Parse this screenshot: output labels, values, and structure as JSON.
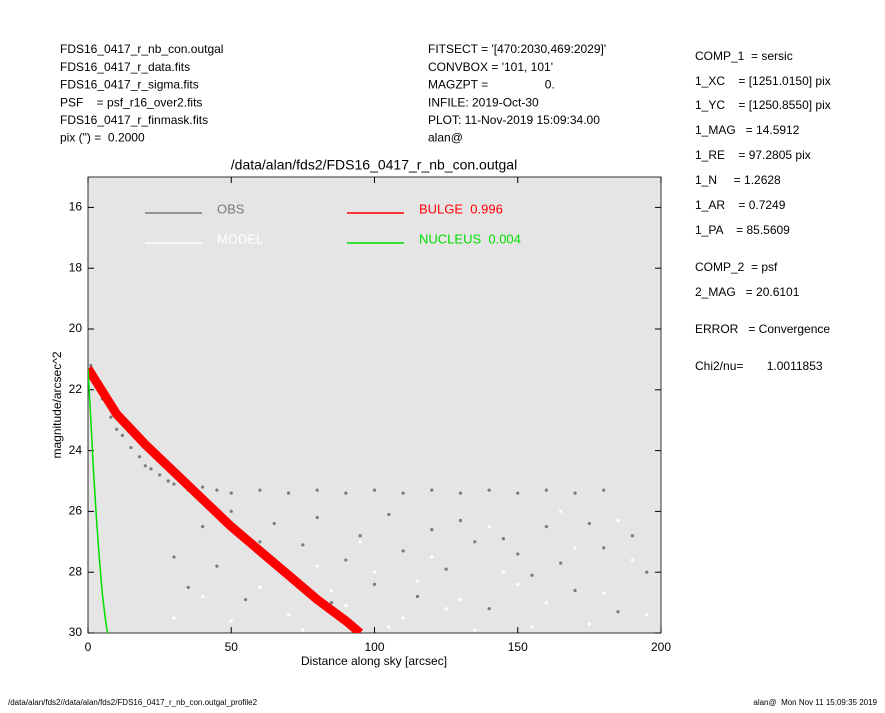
{
  "header_left": [
    "FDS16_0417_r_nb_con.outgal",
    "FDS16_0417_r_data.fits",
    "FDS16_0417_r_sigma.fits",
    "PSF    = psf_r16_over2.fits",
    "FDS16_0417_r_finmask.fits",
    "pix (\") =  0.2000"
  ],
  "header_middle": [
    "FITSECT = '[470:2030,469:2029]'",
    "CONVBOX = '101, 101'",
    "MAGZPT =                 0.",
    "INFILE: 2019-Oct-30",
    "PLOT: 11-Nov-2019 15:09:34.00",
    "alan@"
  ],
  "fit_parameters": [
    "COMP_1  = sersic",
    "1_XC    = [1251.0150] pix",
    "1_YC    = [1250.8550] pix",
    "1_MAG   = 14.5912",
    "1_RE    = 97.2805 pix",
    "1_N     = 1.2628",
    "1_AR    = 0.7249",
    "1_PA    = 85.5609",
    "COMP_2  = psf",
    "2_MAG   = 20.6101",
    "ERROR   = Convergence",
    "Chi2/nu=       1.0011853"
  ],
  "footer_left": "/data/alan/fds2//data/alan/fds2/FDS16_0417_r_nb_con.outgal_profile2",
  "footer_right": "alan@  Mon Nov 11 15:09:35 2019",
  "chart_data": {
    "type": "scatter",
    "title": "/data/alan/fds2/FDS16_0417_r_nb_con.outgal",
    "x_label": "Distance along sky [arcsec]",
    "y_label": "magnitude/arcsec^2",
    "xlim": [
      0,
      200
    ],
    "ylim": [
      30,
      15
    ],
    "xticks": [
      0,
      50,
      100,
      150,
      200
    ],
    "yticks": [
      16,
      18,
      20,
      22,
      24,
      26,
      28,
      30
    ],
    "legend": "upper left",
    "background": "#e5e5e5",
    "series": [
      {
        "name": "OBS",
        "color": "#7a7a7a",
        "mode": "markers",
        "x": [
          1,
          3,
          5,
          8,
          10,
          12,
          15,
          18,
          20,
          22,
          25,
          28,
          30,
          35,
          40,
          45,
          50,
          60,
          70,
          80,
          90,
          100,
          110,
          120,
          130,
          140,
          150,
          160,
          170,
          180,
          30,
          35,
          40,
          45,
          50,
          55,
          60,
          65,
          70,
          75,
          80,
          85,
          90,
          95,
          100,
          105,
          110,
          115,
          120,
          125,
          130,
          135,
          140,
          145,
          150,
          155,
          160,
          165,
          170,
          175,
          180,
          185,
          190,
          195
        ],
        "values": [
          21.2,
          21.8,
          22.3,
          22.9,
          23.3,
          23.5,
          23.9,
          24.2,
          24.5,
          24.6,
          24.8,
          25.0,
          25.1,
          25.3,
          25.2,
          25.3,
          25.4,
          25.3,
          25.4,
          25.3,
          25.4,
          25.3,
          25.4,
          25.3,
          25.4,
          25.3,
          25.4,
          25.3,
          25.4,
          25.3,
          27.5,
          28.5,
          26.5,
          27.8,
          26.0,
          28.9,
          27.0,
          26.4,
          28.2,
          27.1,
          26.2,
          29.0,
          27.6,
          26.8,
          28.4,
          26.1,
          27.3,
          28.8,
          26.6,
          27.9,
          26.3,
          27.0,
          29.2,
          26.9,
          27.4,
          28.1,
          26.5,
          27.7,
          28.6,
          26.4,
          27.2,
          29.3,
          26.8,
          28.0
        ]
      },
      {
        "name": "MODEL",
        "color": "#ffffff",
        "mode": "markers",
        "x": [
          30,
          40,
          50,
          60,
          70,
          80,
          90,
          100,
          110,
          120,
          130,
          140,
          150,
          160,
          170,
          180,
          190,
          195,
          185,
          175,
          165,
          155,
          145,
          135,
          125,
          115,
          105,
          95,
          85,
          75
        ],
        "values": [
          29.5,
          28.8,
          29.6,
          28.5,
          29.4,
          27.8,
          29.1,
          28.0,
          29.5,
          27.5,
          28.9,
          26.5,
          28.4,
          29.0,
          27.2,
          28.7,
          27.6,
          29.4,
          26.3,
          29.7,
          26.0,
          29.8,
          28.0,
          29.9,
          29.2,
          28.3,
          29.8,
          27.0,
          28.6,
          29.9
        ]
      },
      {
        "name": "BULGE  0.996",
        "color": "#ff0000",
        "mode": "band",
        "x": [
          0,
          10,
          20,
          30,
          40,
          50,
          60,
          70,
          80,
          90,
          95
        ],
        "values": [
          21.3,
          22.8,
          23.8,
          24.7,
          25.6,
          26.5,
          27.3,
          28.1,
          28.9,
          29.6,
          30
        ]
      },
      {
        "name": "NUCLEUS  0.004",
        "color": "#00dd00",
        "mode": "lines",
        "x": [
          0,
          1,
          2,
          3,
          4,
          5,
          6,
          6.8
        ],
        "values": [
          21.3,
          23,
          24.8,
          26.3,
          27.6,
          28.7,
          29.5,
          30
        ]
      }
    ]
  }
}
